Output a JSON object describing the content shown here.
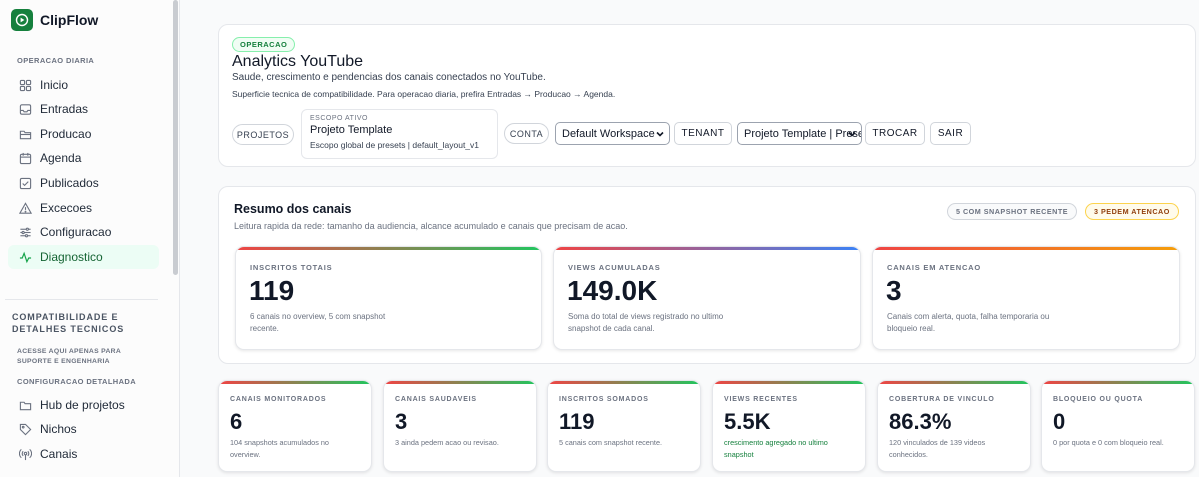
{
  "brand": {
    "name": "ClipFlow"
  },
  "sidebar": {
    "section_daily": "OPERACAO DIARIA",
    "items": [
      {
        "label": "Inicio",
        "icon": "grid-icon"
      },
      {
        "label": "Entradas",
        "icon": "inbox-icon"
      },
      {
        "label": "Producao",
        "icon": "folder-icon"
      },
      {
        "label": "Agenda",
        "icon": "calendar-icon"
      },
      {
        "label": "Publicados",
        "icon": "check-square-icon"
      },
      {
        "label": "Excecoes",
        "icon": "warning-icon"
      },
      {
        "label": "Configuracao",
        "icon": "sliders-icon"
      },
      {
        "label": "Diagnostico",
        "icon": "activity-icon",
        "active": true
      }
    ],
    "compat_title": "COMPATIBILIDADE E DETALHES TECNICOS",
    "compat_sub": "ACESSE AQUI APENAS PARA SUPORTE E ENGENHARIA",
    "section_config": "CONFIGURACAO DETALHADA",
    "config_items": [
      {
        "label": "Hub de projetos",
        "icon": "folder-icon"
      },
      {
        "label": "Nichos",
        "icon": "tag-icon"
      },
      {
        "label": "Canais",
        "icon": "broadcast-icon"
      }
    ]
  },
  "header": {
    "badge": "OPERACAO",
    "title": "Analytics YouTube",
    "subtitle": "Saude, crescimento e pendencias dos canais conectados no YouTube.",
    "note": "Superficie tecnica de compatibilidade. Para operacao diaria, prefira Entradas → Producao → Agenda.",
    "projetos_label": "PROJETOS",
    "scope": {
      "label": "ESCOPO ATIVO",
      "name": "Projeto Template",
      "desc": "Escopo global de presets | default_layout_v1"
    },
    "conta_label": "CONTA",
    "workspace_select": "Default Workspace",
    "tenant_button": "TENANT",
    "project_select": "Projeto Template | Prese",
    "trocar_button": "TROCAR",
    "sair_button": "SAIR"
  },
  "summary": {
    "title": "Resumo dos canais",
    "subtitle": "Leitura rapida da rede: tamanho da audiencia, alcance acumulado e canais que precisam de acao.",
    "tag_snapshot": "5 COM SNAPSHOT RECENTE",
    "tag_attention": "3 PEDEM ATENCAO",
    "cards": [
      {
        "label": "INSCRITOS TOTAIS",
        "value": "119",
        "desc": "6 canais no overview, 5 com snapshot recente."
      },
      {
        "label": "VIEWS ACUMULADAS",
        "value": "149.0K",
        "desc": "Soma do total de views registrado no ultimo snapshot de cada canal."
      },
      {
        "label": "CANAIS EM ATENCAO",
        "value": "3",
        "desc": "Canais com alerta, quota, falha temporaria ou bloqueio real."
      }
    ]
  },
  "metrics": [
    {
      "label": "CANAIS MONITORADOS",
      "value": "6",
      "desc": "104 snapshots acumulados no overview."
    },
    {
      "label": "CANAIS SAUDAVEIS",
      "value": "3",
      "desc": "3 ainda pedem acao ou revisao."
    },
    {
      "label": "INSCRITOS SOMADOS",
      "value": "119",
      "desc": "5 canais com snapshot recente."
    },
    {
      "label": "VIEWS RECENTES",
      "value": "5.5K",
      "desc": "crescimento agregado no ultimo snapshot"
    },
    {
      "label": "COBERTURA DE VINCULO",
      "value": "86.3%",
      "desc": "120 vinculados de 139 videos conhecidos."
    },
    {
      "label": "BLOQUEIO OU QUOTA",
      "value": "0",
      "desc": "0 por quota e 0 com bloqueio real."
    }
  ],
  "colors": {
    "accent_green": "#22c55e",
    "accent_red": "#ef4444",
    "accent_blue": "#3b82f6",
    "accent_orange": "#f59e0b",
    "active_nav_bg": "#ecfdf5"
  }
}
